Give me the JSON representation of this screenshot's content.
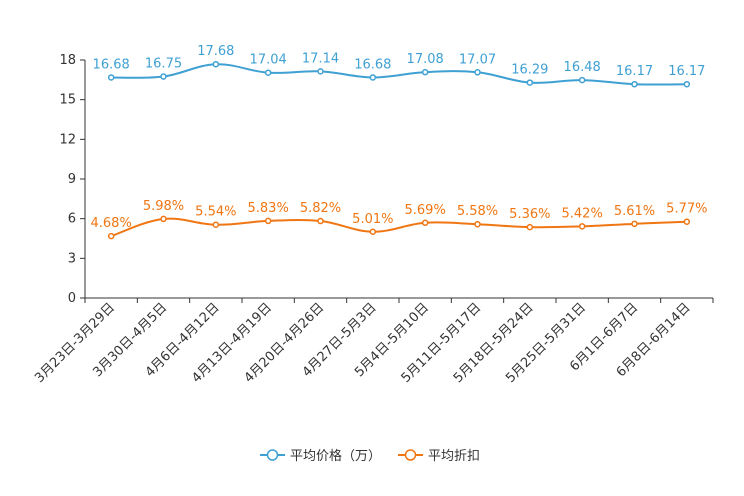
{
  "chart_data": {
    "type": "line",
    "categories": [
      "3月23日-3月29日",
      "3月30日-4月5日",
      "4月6日-4月12日",
      "4月13日-4月19日",
      "4月20日-4月26日",
      "4月27日-5月3日",
      "5月4日-5月10日",
      "5月11日-5月17日",
      "5月18日-5月24日",
      "5月25日-5月31日",
      "6月1日-6月7日",
      "6月8日-6月14日"
    ],
    "series": [
      {
        "name": "平均价格（万）",
        "color": "#3fa0d3",
        "values": [
          16.68,
          16.75,
          17.68,
          17.04,
          17.14,
          16.68,
          17.08,
          17.07,
          16.29,
          16.48,
          16.17,
          16.17
        ],
        "labels": [
          "16.68",
          "16.75",
          "17.68",
          "17.04",
          "17.14",
          "16.68",
          "17.08",
          "17.07",
          "16.29",
          "16.48",
          "16.17",
          "16.17"
        ]
      },
      {
        "name": "平均折扣",
        "color": "#f07613",
        "values": [
          4.68,
          5.98,
          5.54,
          5.83,
          5.82,
          5.01,
          5.69,
          5.58,
          5.36,
          5.42,
          5.61,
          5.77
        ],
        "labels": [
          "4.68%",
          "5.98%",
          "5.54%",
          "5.83%",
          "5.82%",
          "5.01%",
          "5.69%",
          "5.58%",
          "5.36%",
          "5.42%",
          "5.61%",
          "5.77%"
        ]
      }
    ],
    "yticks": [
      "0",
      "3",
      "6",
      "9",
      "12",
      "15",
      "18"
    ],
    "ylim": [
      0,
      18
    ],
    "legend_position": "bottom-center",
    "grid": false
  }
}
